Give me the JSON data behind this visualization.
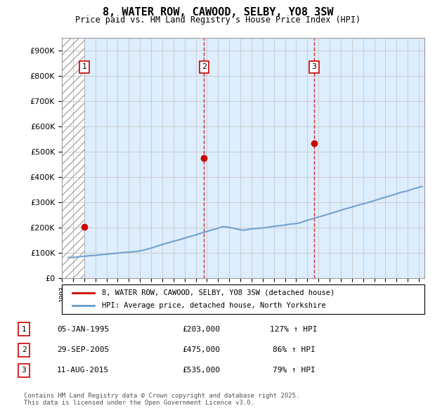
{
  "title": "8, WATER ROW, CAWOOD, SELBY, YO8 3SW",
  "subtitle": "Price paid vs. HM Land Registry's House Price Index (HPI)",
  "ylim": [
    0,
    950000
  ],
  "yticks": [
    0,
    100000,
    200000,
    300000,
    400000,
    500000,
    600000,
    700000,
    800000,
    900000
  ],
  "ytick_labels": [
    "£0",
    "£100K",
    "£200K",
    "£300K",
    "£400K",
    "£500K",
    "£600K",
    "£700K",
    "£800K",
    "£900K"
  ],
  "xlim_start": 1993.0,
  "xlim_end": 2025.5,
  "hatch_end_year": 1995.0,
  "purchase_dates": [
    1995.01,
    2005.75,
    2015.61
  ],
  "purchase_prices": [
    203000,
    475000,
    535000
  ],
  "purchase_labels": [
    "1",
    "2",
    "3"
  ],
  "vline_dates": [
    2005.75,
    2015.61
  ],
  "legend_line1": "8, WATER ROW, CAWOOD, SELBY, YO8 3SW (detached house)",
  "legend_line2": "HPI: Average price, detached house, North Yorkshire",
  "table_rows": [
    [
      "1",
      "05-JAN-1995",
      "£203,000",
      "127% ↑ HPI"
    ],
    [
      "2",
      "29-SEP-2005",
      "£475,000",
      "86% ↑ HPI"
    ],
    [
      "3",
      "11-AUG-2015",
      "£535,000",
      "79% ↑ HPI"
    ]
  ],
  "footer": "Contains HM Land Registry data © Crown copyright and database right 2025.\nThis data is licensed under the Open Government Licence v3.0.",
  "red_color": "#cc0000",
  "blue_color": "#6699cc",
  "hatch_color": "#cccccc",
  "grid_color": "#cccccc",
  "bg_color": "#ddeeff",
  "hatch_bg": "#e8e8e8"
}
